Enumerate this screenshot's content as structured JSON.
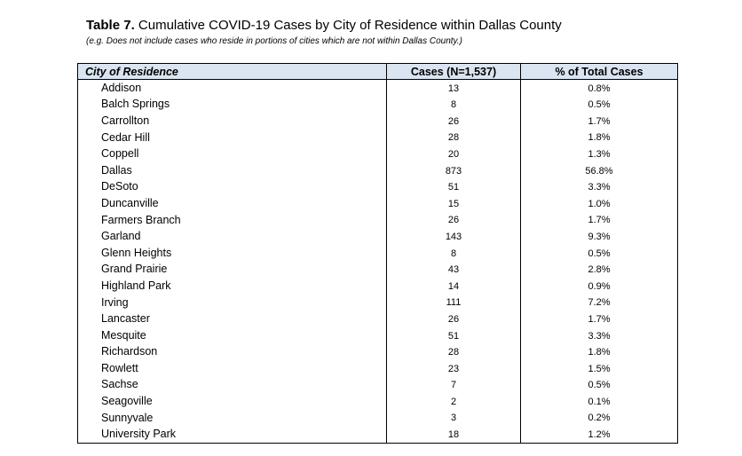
{
  "header": {
    "title_label": "Table 7.",
    "title_text": "Cumulative COVID-19 Cases by City of Residence within Dallas County",
    "subtitle": "(e.g. Does not include cases who reside in portions of cities which are not within Dallas County.)"
  },
  "table": {
    "columns": [
      "City of Residence",
      "Cases (N=1,537)",
      "% of Total Cases"
    ],
    "rows": [
      {
        "city": "Addison",
        "cases": "13",
        "pct": "0.8%"
      },
      {
        "city": "Balch Springs",
        "cases": "8",
        "pct": "0.5%"
      },
      {
        "city": "Carrollton",
        "cases": "26",
        "pct": "1.7%"
      },
      {
        "city": "Cedar Hill",
        "cases": "28",
        "pct": "1.8%"
      },
      {
        "city": "Coppell",
        "cases": "20",
        "pct": "1.3%"
      },
      {
        "city": "Dallas",
        "cases": "873",
        "pct": "56.8%"
      },
      {
        "city": "DeSoto",
        "cases": "51",
        "pct": "3.3%"
      },
      {
        "city": "Duncanville",
        "cases": "15",
        "pct": "1.0%"
      },
      {
        "city": "Farmers Branch",
        "cases": "26",
        "pct": "1.7%"
      },
      {
        "city": "Garland",
        "cases": "143",
        "pct": "9.3%"
      },
      {
        "city": "Glenn Heights",
        "cases": "8",
        "pct": "0.5%"
      },
      {
        "city": "Grand Prairie",
        "cases": "43",
        "pct": "2.8%"
      },
      {
        "city": "Highland Park",
        "cases": "14",
        "pct": "0.9%"
      },
      {
        "city": "Irving",
        "cases": "111",
        "pct": "7.2%"
      },
      {
        "city": "Lancaster",
        "cases": "26",
        "pct": "1.7%"
      },
      {
        "city": "Mesquite",
        "cases": "51",
        "pct": "3.3%"
      },
      {
        "city": "Richardson",
        "cases": "28",
        "pct": "1.8%"
      },
      {
        "city": "Rowlett",
        "cases": "23",
        "pct": "1.5%"
      },
      {
        "city": "Sachse",
        "cases": "7",
        "pct": "0.5%"
      },
      {
        "city": "Seagoville",
        "cases": "2",
        "pct": "0.1%"
      },
      {
        "city": "Sunnyvale",
        "cases": "3",
        "pct": "0.2%"
      },
      {
        "city": "University Park",
        "cases": "18",
        "pct": "1.2%"
      }
    ]
  },
  "colors": {
    "header_fill": "#dbe5f1",
    "border": "#000000"
  }
}
